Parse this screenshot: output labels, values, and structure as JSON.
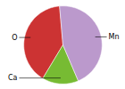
{
  "chart_data": {
    "type": "pie",
    "categories": [
      "O",
      "Ca",
      "Mn"
    ],
    "values": [
      40,
      15,
      45
    ],
    "colors": [
      "#cc3333",
      "#77bb33",
      "#bb99cc"
    ]
  }
}
